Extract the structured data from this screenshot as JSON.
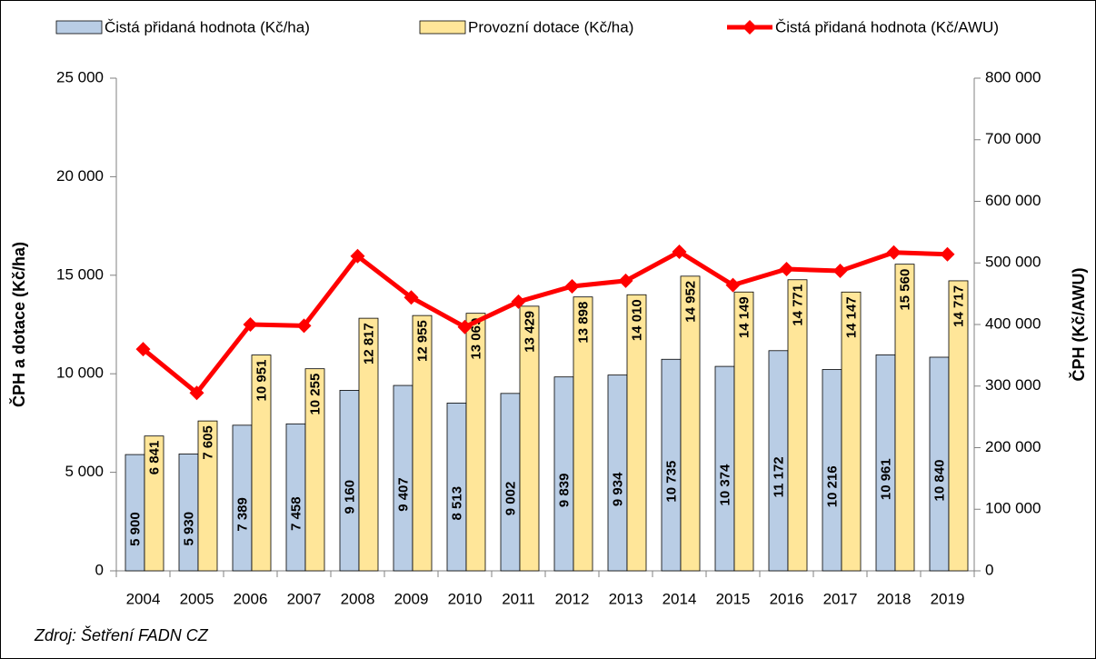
{
  "chart_data": {
    "type": "bar_line",
    "categories": [
      "2004",
      "2005",
      "2006",
      "2007",
      "2008",
      "2009",
      "2010",
      "2011",
      "2012",
      "2013",
      "2014",
      "2015",
      "2016",
      "2017",
      "2018",
      "2019"
    ],
    "series": [
      {
        "name": "Čistá přidaná hodnota (Kč/ha)",
        "type": "bar",
        "color": "#b9cde5",
        "values": [
          5900,
          5930,
          7389,
          7458,
          9160,
          9407,
          8513,
          9002,
          9839,
          9934,
          10735,
          10374,
          11172,
          10216,
          10961,
          10840
        ],
        "value_labels": [
          "5 900",
          "5 930",
          "7 389",
          "7 458",
          "9 160",
          "9 407",
          "8 513",
          "9 002",
          "9 839",
          "9 934",
          "10 735",
          "10 374",
          "11 172",
          "10 216",
          "10 961",
          "10 840"
        ]
      },
      {
        "name": "Provozní dotace (Kč/ha)",
        "type": "bar",
        "color": "#ffe699",
        "values": [
          6841,
          7605,
          10951,
          10255,
          12817,
          12955,
          13069,
          13429,
          13898,
          14010,
          14952,
          14149,
          14771,
          14147,
          15560,
          14717
        ],
        "value_labels": [
          "6 841",
          "7 605",
          "10 951",
          "10 255",
          "12 817",
          "12 955",
          "13 069",
          "13 429",
          "13 898",
          "14 010",
          "14 952",
          "14 149",
          "14 771",
          "14 147",
          "15 560",
          "14 717"
        ]
      },
      {
        "name": "Čistá přidaná hodnota (Kč/AWU)",
        "type": "line",
        "color": "#ff0000",
        "axis": "y2",
        "values": [
          360000,
          289000,
          400000,
          398000,
          511000,
          444000,
          396000,
          437000,
          462000,
          471000,
          518000,
          464000,
          490000,
          487000,
          517000,
          514000
        ]
      }
    ],
    "ylabel": "ČPH a dotace (Kč/ha)",
    "y2label": "ČPH (Kč/AWU)",
    "ylim": [
      0,
      25000
    ],
    "yticks": [
      0,
      {
        "value": 5000,
        "label": "5 000"
      },
      {
        "value": 10000,
        "label": "10 000"
      },
      {
        "value": 15000,
        "label": "15 000"
      },
      {
        "value": 20000,
        "label": "20 000"
      },
      {
        "value": 25000,
        "label": "25 000"
      }
    ],
    "y2lim": [
      0,
      800000
    ],
    "y2ticks": [
      0,
      {
        "value": 100000,
        "label": "100 000"
      },
      {
        "value": 200000,
        "label": "200 000"
      },
      {
        "value": 300000,
        "label": "300 000"
      },
      {
        "value": 400000,
        "label": "400 000"
      },
      {
        "value": 500000,
        "label": "500 000"
      },
      {
        "value": 600000,
        "label": "600 000"
      },
      {
        "value": 700000,
        "label": "700 000"
      },
      {
        "value": 800000,
        "label": "800 000"
      }
    ],
    "source": "Zdroj: Šetření FADN CZ",
    "legend": "top"
  }
}
